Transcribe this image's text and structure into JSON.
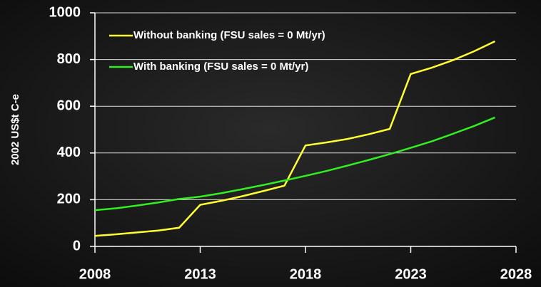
{
  "chart_data": {
    "type": "line",
    "y_label": "2002 US$t C-e",
    "x": [
      2008,
      2009,
      2010,
      2011,
      2012,
      2013,
      2014,
      2015,
      2016,
      2017,
      2018,
      2019,
      2020,
      2021,
      2022,
      2023,
      2024,
      2025,
      2026,
      2027
    ],
    "series": [
      {
        "name": "Without banking (FSU sales = 0 Mt/yr)",
        "color": "#ffff33",
        "values": [
          45,
          52,
          60,
          68,
          80,
          178,
          195,
          215,
          237,
          260,
          432,
          445,
          460,
          480,
          503,
          738,
          765,
          797,
          835,
          878
        ]
      },
      {
        "name": "With banking (FSU sales = 0 Mt/yr)",
        "color": "#33ee22",
        "values": [
          155,
          163,
          175,
          188,
          203,
          213,
          228,
          245,
          263,
          282,
          302,
          323,
          346,
          370,
          395,
          422,
          450,
          482,
          515,
          552
        ]
      }
    ],
    "xlim": [
      2008,
      2028
    ],
    "xticks": [
      2008,
      2013,
      2018,
      2023,
      2028
    ],
    "ylim": [
      0,
      1000
    ],
    "yticks": [
      0,
      200,
      400,
      600,
      800,
      1000
    ],
    "grid": true,
    "legend": "upper left"
  }
}
